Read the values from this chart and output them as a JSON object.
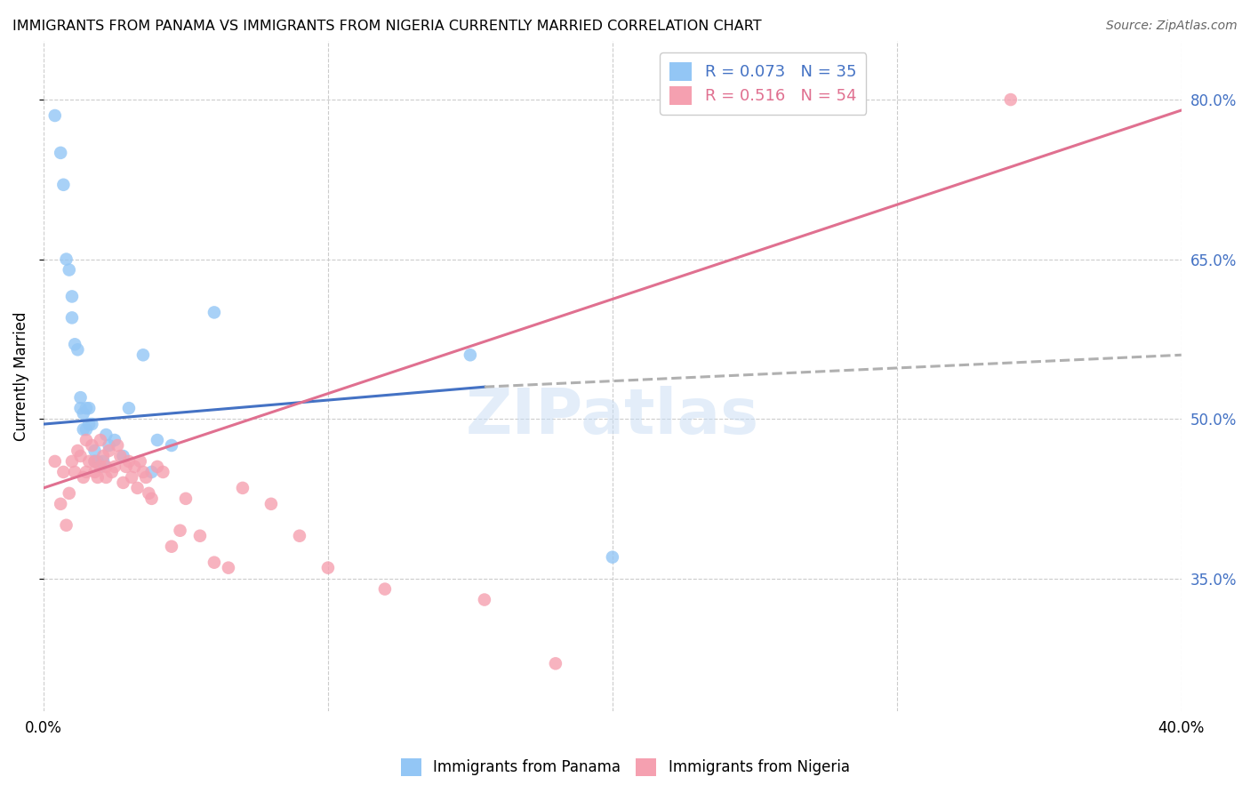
{
  "title": "IMMIGRANTS FROM PANAMA VS IMMIGRANTS FROM NIGERIA CURRENTLY MARRIED CORRELATION CHART",
  "source": "Source: ZipAtlas.com",
  "ylabel": "Currently Married",
  "right_yticks": [
    "35.0%",
    "50.0%",
    "65.0%",
    "80.0%"
  ],
  "right_ytick_vals": [
    0.35,
    0.5,
    0.65,
    0.8
  ],
  "xlim": [
    0.0,
    0.4
  ],
  "ylim": [
    0.225,
    0.855
  ],
  "panama_color": "#93c6f5",
  "nigeria_color": "#f5a0b0",
  "panama_line_color": "#4472c4",
  "nigeria_line_color": "#e07090",
  "dashed_line_color": "#b0b0b0",
  "panama_R": 0.073,
  "panama_N": 35,
  "nigeria_R": 0.516,
  "nigeria_N": 54,
  "panama_scatter_x": [
    0.004,
    0.006,
    0.007,
    0.008,
    0.009,
    0.01,
    0.01,
    0.011,
    0.012,
    0.013,
    0.013,
    0.014,
    0.014,
    0.015,
    0.015,
    0.016,
    0.016,
    0.017,
    0.018,
    0.018,
    0.019,
    0.02,
    0.021,
    0.022,
    0.023,
    0.025,
    0.028,
    0.03,
    0.035,
    0.038,
    0.04,
    0.045,
    0.06,
    0.15,
    0.2
  ],
  "panama_scatter_y": [
    0.785,
    0.75,
    0.72,
    0.65,
    0.64,
    0.595,
    0.615,
    0.57,
    0.565,
    0.51,
    0.52,
    0.505,
    0.49,
    0.51,
    0.49,
    0.495,
    0.51,
    0.495,
    0.47,
    0.46,
    0.46,
    0.455,
    0.46,
    0.485,
    0.475,
    0.48,
    0.465,
    0.51,
    0.56,
    0.45,
    0.48,
    0.475,
    0.6,
    0.56,
    0.37
  ],
  "nigeria_scatter_x": [
    0.004,
    0.006,
    0.007,
    0.008,
    0.009,
    0.01,
    0.011,
    0.012,
    0.013,
    0.014,
    0.015,
    0.015,
    0.016,
    0.017,
    0.018,
    0.018,
    0.019,
    0.02,
    0.02,
    0.021,
    0.022,
    0.022,
    0.023,
    0.024,
    0.025,
    0.026,
    0.027,
    0.028,
    0.029,
    0.03,
    0.031,
    0.032,
    0.033,
    0.034,
    0.035,
    0.036,
    0.037,
    0.038,
    0.04,
    0.042,
    0.045,
    0.048,
    0.05,
    0.055,
    0.06,
    0.065,
    0.07,
    0.08,
    0.09,
    0.1,
    0.12,
    0.155,
    0.18,
    0.34
  ],
  "nigeria_scatter_y": [
    0.46,
    0.42,
    0.45,
    0.4,
    0.43,
    0.46,
    0.45,
    0.47,
    0.465,
    0.445,
    0.48,
    0.45,
    0.46,
    0.475,
    0.45,
    0.46,
    0.445,
    0.455,
    0.48,
    0.465,
    0.455,
    0.445,
    0.47,
    0.45,
    0.455,
    0.475,
    0.465,
    0.44,
    0.455,
    0.46,
    0.445,
    0.455,
    0.435,
    0.46,
    0.45,
    0.445,
    0.43,
    0.425,
    0.455,
    0.45,
    0.38,
    0.395,
    0.425,
    0.39,
    0.365,
    0.36,
    0.435,
    0.42,
    0.39,
    0.36,
    0.34,
    0.33,
    0.27,
    0.8
  ],
  "panama_line_x0": 0.0,
  "panama_line_x1": 0.155,
  "panama_line_x2": 0.4,
  "panama_line_y0": 0.495,
  "panama_line_y1": 0.53,
  "panama_line_y2": 0.56,
  "nigeria_line_x0": 0.0,
  "nigeria_line_x1": 0.4,
  "nigeria_line_y0": 0.435,
  "nigeria_line_y1": 0.79,
  "watermark": "ZIPatlas",
  "legend_panama_label": "R = 0.073   N = 35",
  "legend_nigeria_label": "R = 0.516   N = 54"
}
